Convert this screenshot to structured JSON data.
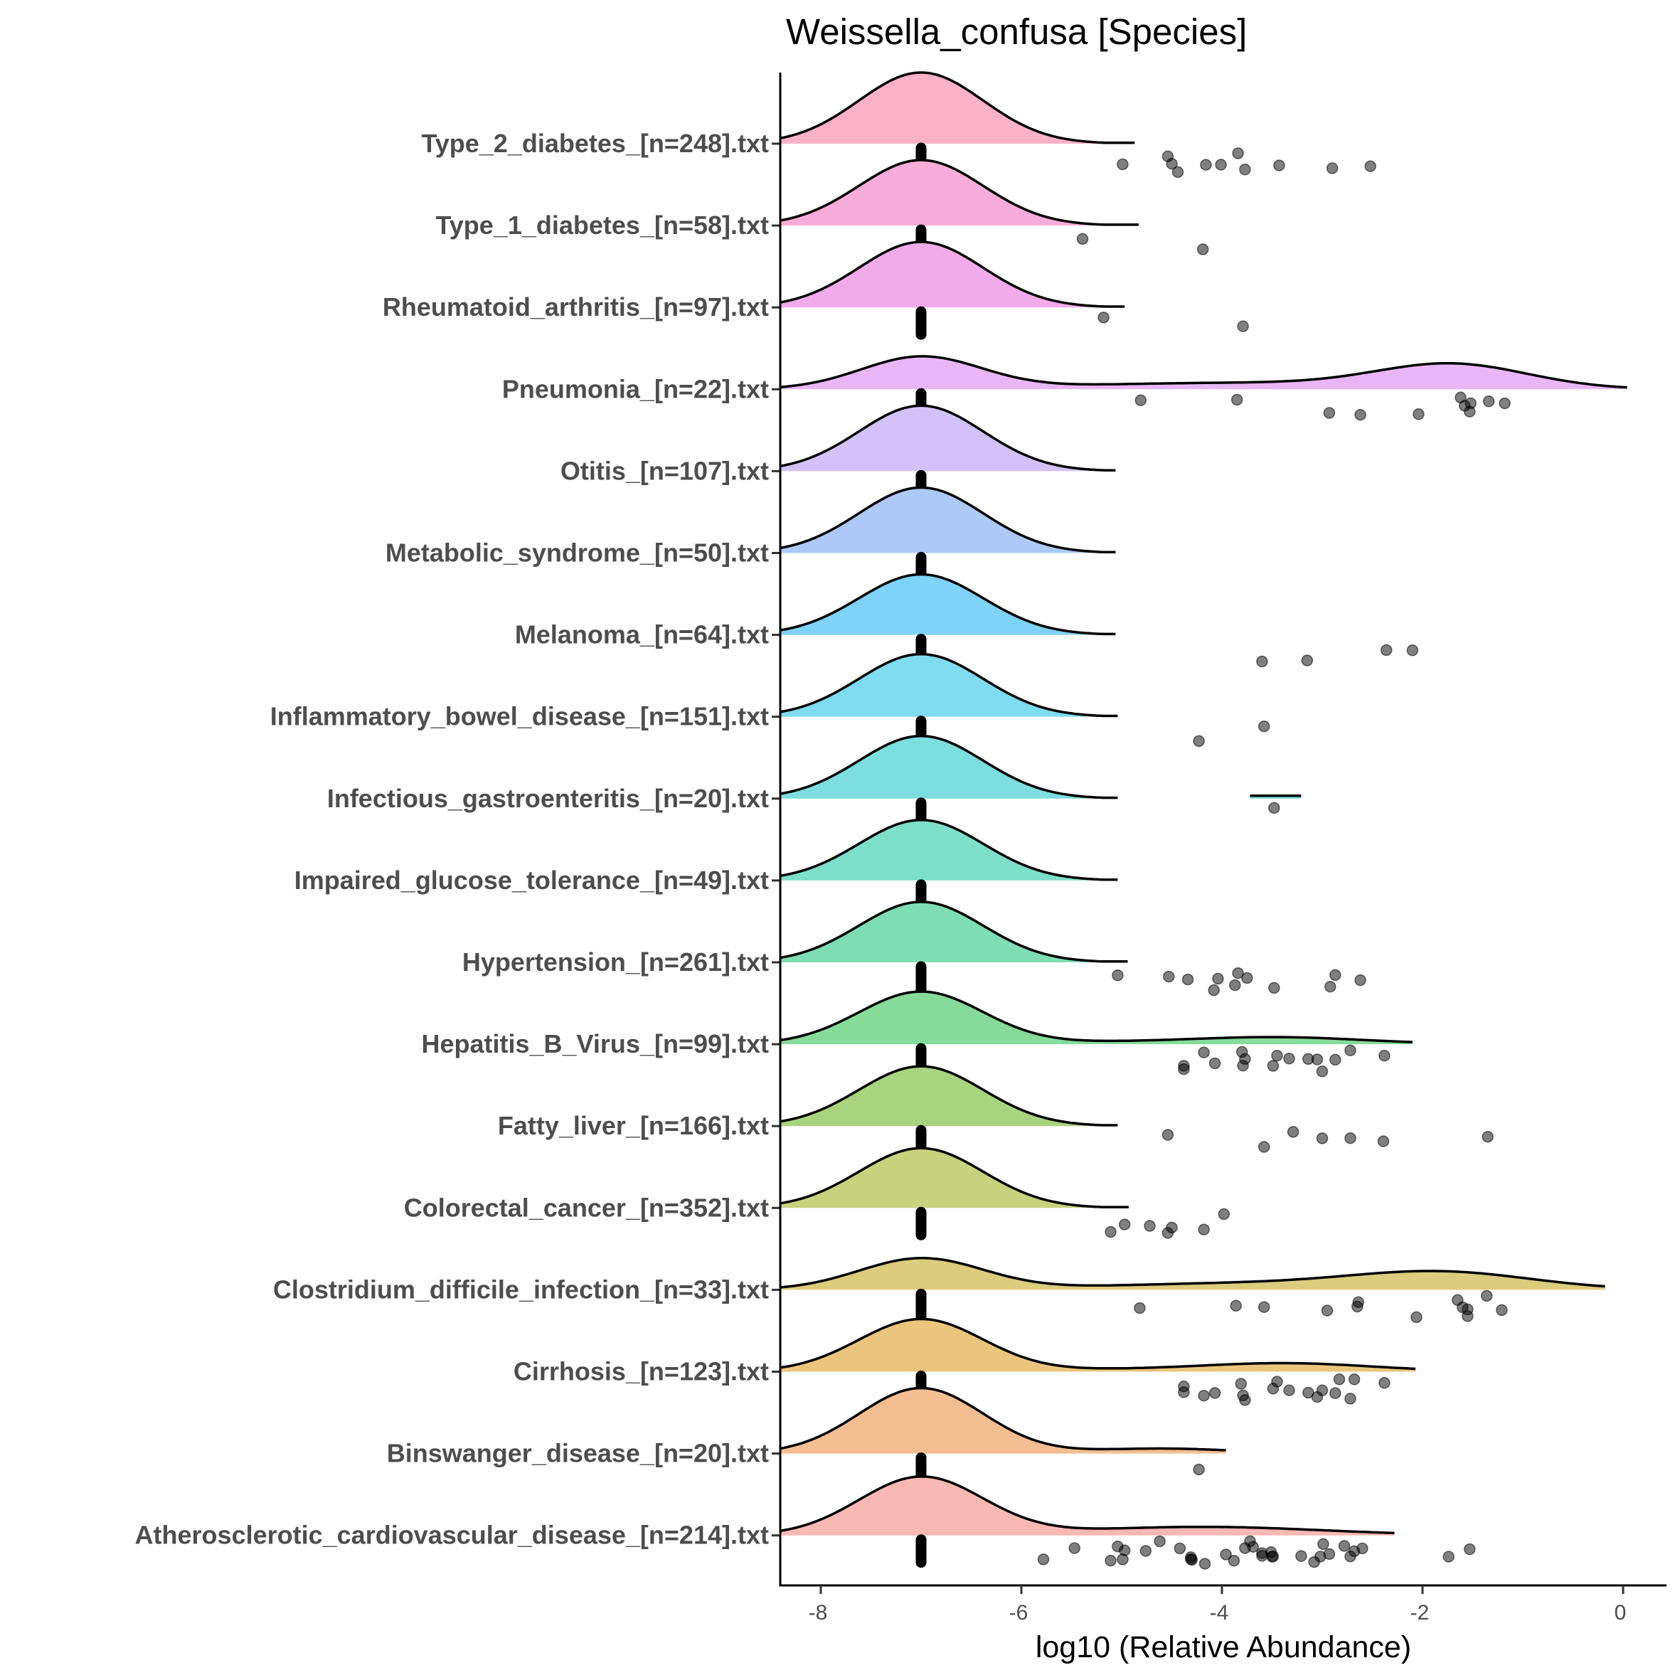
{
  "chart_data": {
    "type": "ridgeline",
    "title": "Weissella_confusa [Species]",
    "xlabel": "log10 (Relative Abundance)",
    "ylabel": "",
    "xlim": [
      -8.4,
      0.4
    ],
    "xticks": [
      -8,
      -6,
      -4,
      -2,
      0
    ],
    "xtick_labels": [
      "-8",
      "-6",
      "-4",
      "-2",
      "0"
    ],
    "grid": false,
    "legend": "none",
    "median_value": -7.0,
    "series": [
      {
        "name": "Type_2_diabetes_[n=248].txt",
        "color": "#FBB1C7",
        "density_end": -4.87,
        "density_model": [
          {
            "mean": -7.0,
            "sd": 0.62,
            "height": 1.0
          }
        ],
        "outliers": [
          -4.99,
          -4.54,
          -4.5,
          -4.44,
          -4.16,
          -4.01,
          -3.84,
          -3.77,
          -3.43,
          -2.9,
          -2.52
        ]
      },
      {
        "name": "Type_1_diabetes_[n=58].txt",
        "color": "#F8ACDA",
        "density_end": -4.83,
        "density_model": [
          {
            "mean": -7.0,
            "sd": 0.62,
            "height": 0.92
          }
        ],
        "outliers": [
          -5.39,
          -4.19
        ]
      },
      {
        "name": "Rheumatoid_arthritis_[n=97].txt",
        "color": "#F1ABEB",
        "density_end": -4.97,
        "density_model": [
          {
            "mean": -7.0,
            "sd": 0.62,
            "height": 0.92
          }
        ],
        "outliers": [
          -5.18,
          -3.79
        ]
      },
      {
        "name": "Pneumonia_[n=22].txt",
        "color": "#E8B6F6",
        "density_end": 0.04,
        "density_model": [
          {
            "mean": -7.0,
            "sd": 0.6,
            "height": 0.45
          },
          {
            "mean": -1.7,
            "sd": 0.75,
            "height": 0.33
          },
          {
            "mean": -3.9,
            "sd": 1.6,
            "height": 0.09
          }
        ],
        "outliers": [
          -4.81,
          -3.85,
          -2.93,
          -2.62,
          -2.04,
          -1.62,
          -1.58,
          -1.53,
          -1.52,
          -1.34,
          -1.18
        ]
      },
      {
        "name": "Otitis_[n=107].txt",
        "color": "#D3C2F9",
        "density_end": -5.06,
        "density_model": [
          {
            "mean": -7.0,
            "sd": 0.62,
            "height": 0.92
          }
        ],
        "outliers": []
      },
      {
        "name": "Metabolic_syndrome_[n=50].txt",
        "color": "#ACC9F8",
        "density_end": -5.06,
        "density_model": [
          {
            "mean": -7.0,
            "sd": 0.62,
            "height": 0.92
          }
        ],
        "outliers": []
      },
      {
        "name": "Melanoma_[n=64].txt",
        "color": "#7FD2F8",
        "density_end": -5.06,
        "density_model": [
          {
            "mean": -7.0,
            "sd": 0.62,
            "height": 0.85
          }
        ],
        "outliers": [
          -3.6,
          -3.15,
          -2.36,
          -2.1
        ]
      },
      {
        "name": "Inflammatory_bowel_disease_[n=151].txt",
        "color": "#7EDBF0",
        "density_end": -5.04,
        "density_model": [
          {
            "mean": -7.0,
            "sd": 0.62,
            "height": 0.88
          }
        ],
        "outliers": [
          -4.23,
          -3.58
        ]
      },
      {
        "name": "Infectious_gastroenteritis_[n=20].txt",
        "color": "#7CDEDE",
        "density_end": -5.04,
        "density_model": [
          {
            "mean": -7.0,
            "sd": 0.62,
            "height": 0.88
          }
        ],
        "extra_segment": [
          -3.72,
          -3.21
        ],
        "outliers": [
          -3.48
        ]
      },
      {
        "name": "Impaired_glucose_tolerance_[n=49].txt",
        "color": "#7DDECA",
        "density_end": -5.04,
        "density_model": [
          {
            "mean": -7.0,
            "sd": 0.62,
            "height": 0.85
          }
        ],
        "outliers": []
      },
      {
        "name": "Hypertension_[n=261].txt",
        "color": "#7EDDB2",
        "density_end": -4.94,
        "density_model": [
          {
            "mean": -7.0,
            "sd": 0.62,
            "height": 0.85
          }
        ],
        "outliers": [
          -5.04,
          -4.53,
          -4.34,
          -4.08,
          -4.04,
          -3.87,
          -3.84,
          -3.75,
          -3.48,
          -2.92,
          -2.87,
          -2.62
        ]
      },
      {
        "name": "Hepatitis_B_Virus_[n=99].txt",
        "color": "#86DB9A",
        "density_end": -2.1,
        "density_model": [
          {
            "mean": -7.0,
            "sd": 0.62,
            "height": 0.74
          },
          {
            "mean": -3.5,
            "sd": 0.9,
            "height": 0.1
          },
          {
            "mean": -5.2,
            "sd": 0.6,
            "height": 0.02
          }
        ],
        "outliers": [
          -4.38,
          -4.38,
          -4.18,
          -4.07,
          -3.8,
          -3.79,
          -3.77,
          -3.49,
          -3.45,
          -3.33,
          -3.14,
          -3.05,
          -3.0,
          -2.87,
          -2.72,
          -2.38
        ]
      },
      {
        "name": "Fatty_liver_[n=166].txt",
        "color": "#A9D47F",
        "density_end": -5.04,
        "density_model": [
          {
            "mean": -7.0,
            "sd": 0.62,
            "height": 0.84
          }
        ],
        "outliers": [
          -4.54,
          -3.58,
          -3.29,
          -3.0,
          -2.72,
          -2.39,
          -1.35
        ]
      },
      {
        "name": "Colorectal_cancer_[n=352].txt",
        "color": "#C8D27E",
        "density_end": -4.93,
        "density_model": [
          {
            "mean": -7.0,
            "sd": 0.62,
            "height": 0.84
          }
        ],
        "outliers": [
          -5.11,
          -4.97,
          -4.72,
          -4.54,
          -4.5,
          -4.18,
          -3.98
        ]
      },
      {
        "name": "Clostridium_difficile_infection_[n=33].txt",
        "color": "#DBCC7E",
        "density_end": -0.18,
        "density_model": [
          {
            "mean": -7.0,
            "sd": 0.62,
            "height": 0.44
          },
          {
            "mean": -1.8,
            "sd": 0.9,
            "height": 0.23
          },
          {
            "mean": -3.8,
            "sd": 1.4,
            "height": 0.09
          }
        ],
        "outliers": [
          -4.82,
          -3.86,
          -3.58,
          -2.95,
          -2.64,
          -2.65,
          -2.06,
          -1.65,
          -1.6,
          -1.55,
          -1.55,
          -1.36,
          -1.21
        ]
      },
      {
        "name": "Cirrhosis_[n=123].txt",
        "color": "#EBC57D",
        "density_end": -2.07,
        "density_model": [
          {
            "mean": -7.0,
            "sd": 0.62,
            "height": 0.74
          },
          {
            "mean": -3.4,
            "sd": 0.9,
            "height": 0.12
          },
          {
            "mean": -5.2,
            "sd": 0.6,
            "height": 0.02
          }
        ],
        "outliers": [
          -4.38,
          -4.38,
          -4.18,
          -4.07,
          -3.81,
          -3.79,
          -3.77,
          -3.49,
          -3.45,
          -3.33,
          -3.14,
          -3.05,
          -3.0,
          -2.87,
          -2.83,
          -2.72,
          -2.68,
          -2.38
        ]
      },
      {
        "name": "Binswanger_disease_[n=20].txt",
        "color": "#F3BE92",
        "density_end": -3.96,
        "density_model": [
          {
            "mean": -7.0,
            "sd": 0.62,
            "height": 0.92
          },
          {
            "mean": -4.6,
            "sd": 0.7,
            "height": 0.07
          }
        ],
        "outliers": [
          -4.23
        ]
      },
      {
        "name": "Atherosclerotic_cardiovascular_disease_[n=214].txt",
        "color": "#F8B8B4",
        "density_end": -2.28,
        "density_model": [
          {
            "mean": -7.0,
            "sd": 0.62,
            "height": 0.82
          },
          {
            "mean": -4.2,
            "sd": 1.2,
            "height": 0.12
          }
        ],
        "outliers": [
          -5.78,
          -5.47,
          -5.11,
          -5.04,
          -4.99,
          -4.97,
          -4.76,
          -4.62,
          -4.42,
          -4.31,
          -4.3,
          -4.31,
          -4.17,
          -3.96,
          -3.88,
          -3.77,
          -3.72,
          -3.69,
          -3.6,
          -3.6,
          -3.5,
          -3.49,
          -3.51,
          -3.21,
          -3.08,
          -3.02,
          -2.99,
          -2.93,
          -2.78,
          -2.72,
          -2.68,
          -2.6,
          -1.74,
          -1.53
        ]
      }
    ]
  }
}
